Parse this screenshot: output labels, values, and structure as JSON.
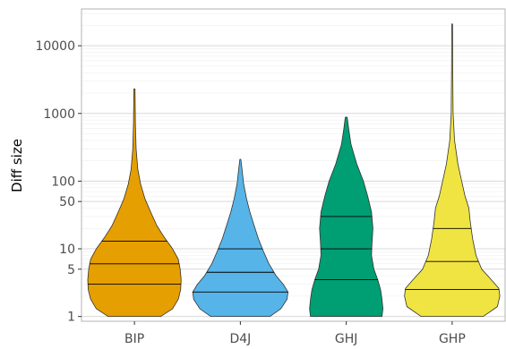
{
  "chart_data": {
    "type": "violin",
    "title": "",
    "xlabel": "",
    "ylabel": "Diff size",
    "y_scale": "log10",
    "ylim": [
      0.85,
      35000
    ],
    "y_ticks": [
      {
        "value": 1,
        "label": "1"
      },
      {
        "value": 5,
        "label": "5"
      },
      {
        "value": 10,
        "label": "10"
      },
      {
        "value": 50,
        "label": "50"
      },
      {
        "value": 100,
        "label": "100"
      },
      {
        "value": 1000,
        "label": "1000"
      },
      {
        "value": 10000,
        "label": "10000"
      }
    ],
    "grid": true,
    "legend": "none",
    "categories": [
      "BIP",
      "D4J",
      "GHJ",
      "GHP"
    ],
    "series": [
      {
        "category": "BIP",
        "color": "#E69F00",
        "min": 1,
        "max": 2300,
        "quartiles": [
          3,
          6,
          13
        ],
        "density": [
          [
            1,
            0.55
          ],
          [
            1.3,
            0.8
          ],
          [
            1.8,
            0.92
          ],
          [
            2.5,
            0.97
          ],
          [
            3.5,
            0.98
          ],
          [
            5,
            0.96
          ],
          [
            7,
            0.92
          ],
          [
            10,
            0.8
          ],
          [
            15,
            0.62
          ],
          [
            22,
            0.47
          ],
          [
            35,
            0.34
          ],
          [
            55,
            0.22
          ],
          [
            90,
            0.13
          ],
          [
            150,
            0.07
          ],
          [
            300,
            0.035
          ],
          [
            700,
            0.02
          ],
          [
            2300,
            0.012
          ]
        ]
      },
      {
        "category": "D4J",
        "color": "#56B4E9",
        "min": 1,
        "max": 210,
        "quartiles": [
          2.3,
          4.5,
          10
        ],
        "density": [
          [
            1,
            0.62
          ],
          [
            1.3,
            0.85
          ],
          [
            1.8,
            0.98
          ],
          [
            2.3,
            1.0
          ],
          [
            3,
            0.9
          ],
          [
            4,
            0.75
          ],
          [
            6,
            0.6
          ],
          [
            9,
            0.49
          ],
          [
            14,
            0.38
          ],
          [
            22,
            0.29
          ],
          [
            35,
            0.2
          ],
          [
            55,
            0.13
          ],
          [
            90,
            0.07
          ],
          [
            150,
            0.035
          ],
          [
            210,
            0.01
          ]
        ]
      },
      {
        "category": "GHJ",
        "color": "#009E73",
        "min": 1,
        "max": 880,
        "quartiles": [
          3.5,
          10,
          30
        ],
        "density": [
          [
            1,
            0.75
          ],
          [
            1.3,
            0.77
          ],
          [
            1.8,
            0.75
          ],
          [
            2.5,
            0.72
          ],
          [
            3.5,
            0.66
          ],
          [
            5,
            0.58
          ],
          [
            8,
            0.53
          ],
          [
            12,
            0.54
          ],
          [
            20,
            0.56
          ],
          [
            35,
            0.53
          ],
          [
            60,
            0.45
          ],
          [
            100,
            0.36
          ],
          [
            180,
            0.22
          ],
          [
            350,
            0.1
          ],
          [
            600,
            0.05
          ],
          [
            880,
            0.02
          ]
        ]
      },
      {
        "category": "GHP",
        "color": "#F0E442",
        "min": 1,
        "max": 21000,
        "quartiles": [
          2.5,
          6.5,
          20
        ],
        "density": [
          [
            1,
            0.65
          ],
          [
            1.4,
            0.95
          ],
          [
            2,
            1.0
          ],
          [
            2.6,
            0.98
          ],
          [
            3.5,
            0.82
          ],
          [
            5,
            0.62
          ],
          [
            8,
            0.5
          ],
          [
            14,
            0.43
          ],
          [
            25,
            0.38
          ],
          [
            40,
            0.35
          ],
          [
            60,
            0.27
          ],
          [
            100,
            0.2
          ],
          [
            180,
            0.12
          ],
          [
            400,
            0.05
          ],
          [
            1000,
            0.02
          ],
          [
            5000,
            0.012
          ],
          [
            21000,
            0.008
          ]
        ]
      }
    ]
  }
}
